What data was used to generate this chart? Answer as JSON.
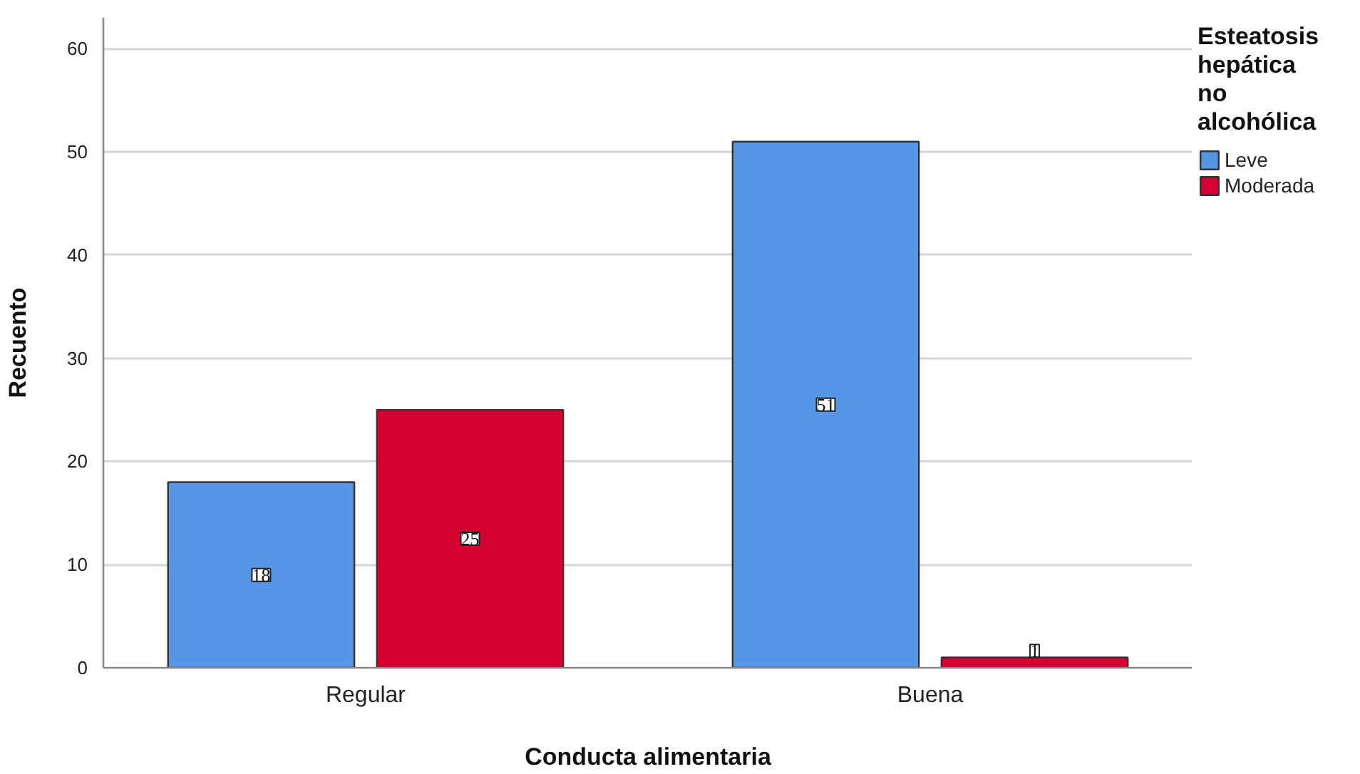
{
  "chart_data": {
    "type": "bar",
    "xlabel": "Conducta alimentaria",
    "ylabel": "Recuento",
    "legend_title": "Esteatosis hepática no alcohólica",
    "categories": [
      "Regular",
      "Buena"
    ],
    "series": [
      {
        "name": "Leve",
        "color": "#5596e6",
        "values": [
          18,
          51
        ]
      },
      {
        "name": "Moderada",
        "color": "#d50032",
        "values": [
          25,
          1
        ]
      }
    ],
    "ylim": [
      0,
      63
    ],
    "yticks": [
      0,
      10,
      20,
      30,
      40,
      50,
      60
    ],
    "grid": "y",
    "legend": "right",
    "data_labels": true
  }
}
